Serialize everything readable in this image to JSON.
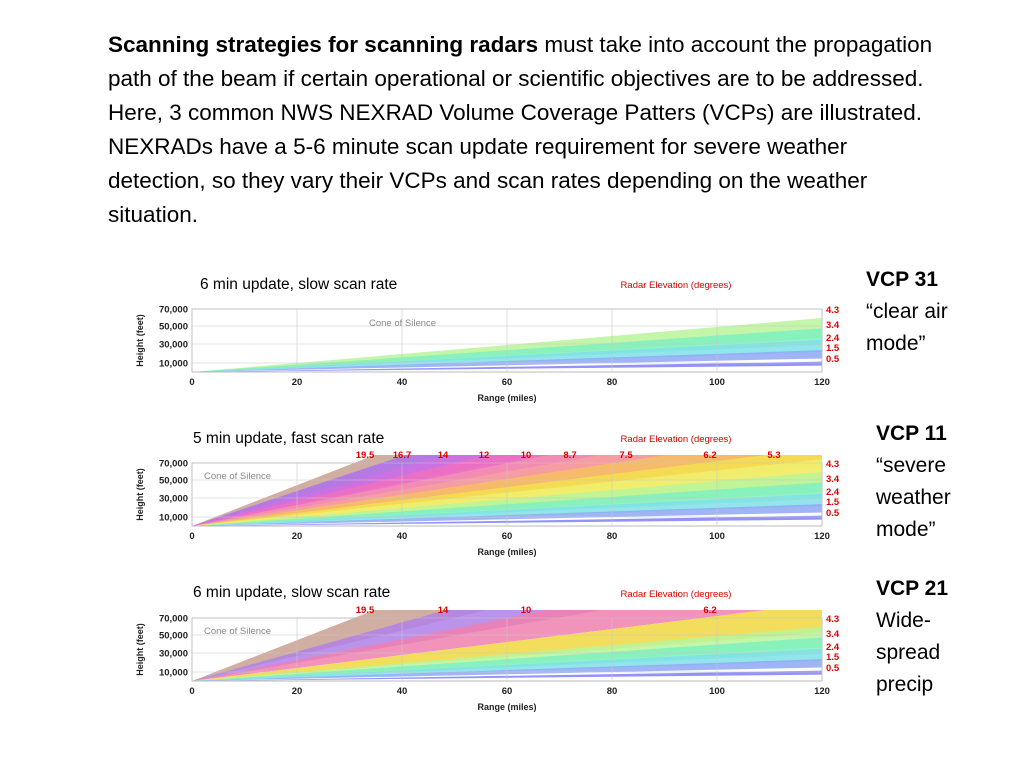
{
  "intro": {
    "bold": "Scanning strategies for scanning radars",
    "rest": " must take into account the propagation path of the beam if certain operational or scientific objectives are to be addressed.  Here, 3 common NWS NEXRAD Volume Coverage Patters (VCPs) are illustrated. NEXRADs have a 5-6 minute scan update requirement for severe weather detection, so they vary their VCPs and scan rates depending on the weather situation."
  },
  "colors": {
    "elevation_label": "#e00000",
    "grid": "#c8c8c8"
  },
  "panels": [
    {
      "caption": "6 min update, slow scan rate",
      "vcp_name": "VCP 31",
      "vcp_desc": "“clear air\nmode”",
      "chart_data": {
        "type": "line",
        "title": "Radar Elevation  (degrees)",
        "xlabel": "Range (miles)",
        "ylabel": "Height (feet)",
        "x_ticks": [
          0,
          20,
          40,
          60,
          80,
          100,
          120
        ],
        "y_ticks": [
          "70,000",
          "50,000",
          "30,000",
          "10,000"
        ],
        "annotation": "Cone of Silence",
        "right_labels": [
          "4.3",
          "3.4",
          "2.4",
          "1.5",
          "0.5"
        ],
        "top_labels": [],
        "beams": [
          {
            "elev": 0.5,
            "color": "#7f7ff8"
          },
          {
            "elev": 1.5,
            "color": "#8fa8f5"
          },
          {
            "elev": 2.4,
            "color": "#7fe0e8"
          },
          {
            "elev": 3.4,
            "color": "#7ff0c0"
          },
          {
            "elev": 4.3,
            "color": "#b8f59a"
          }
        ]
      }
    },
    {
      "caption": "5 min update, fast scan rate",
      "vcp_name": "VCP 11",
      "vcp_desc": "“severe\nweather\nmode”",
      "chart_data": {
        "type": "line",
        "title": "Radar Elevation  (degrees)",
        "xlabel": "Range (miles)",
        "ylabel": "Height (feet)",
        "x_ticks": [
          0,
          20,
          40,
          60,
          80,
          100,
          120
        ],
        "y_ticks": [
          "70,000",
          "50,000",
          "30,000",
          "10,000"
        ],
        "annotation": "Cone of Silence",
        "right_labels": [
          "4.3",
          "3.4",
          "2.4",
          "1.5",
          "0.5"
        ],
        "top_labels": [
          "19.5",
          "16.7",
          "14",
          "12",
          "10",
          "8.7",
          "7.5",
          "6.2",
          "5.3"
        ],
        "beams": [
          {
            "elev": 0.5,
            "color": "#7f7ff8"
          },
          {
            "elev": 1.5,
            "color": "#8fa8f5"
          },
          {
            "elev": 2.4,
            "color": "#7fe0e8"
          },
          {
            "elev": 3.4,
            "color": "#7ff0c0"
          },
          {
            "elev": 4.3,
            "color": "#b8f59a"
          },
          {
            "elev": 5.3,
            "color": "#f0f070"
          },
          {
            "elev": 6.2,
            "color": "#f5e050"
          },
          {
            "elev": 7.5,
            "color": "#f5c060"
          },
          {
            "elev": 8.7,
            "color": "#f5a0a0"
          },
          {
            "elev": 10,
            "color": "#f590b0"
          },
          {
            "elev": 12,
            "color": "#f070c0"
          },
          {
            "elev": 14,
            "color": "#d070e0"
          },
          {
            "elev": 16.7,
            "color": "#b070f0"
          },
          {
            "elev": 19.5,
            "color": "#c8a090"
          }
        ]
      }
    },
    {
      "caption": "6 min update, slow scan rate",
      "vcp_name": "VCP 21",
      "vcp_desc": "Wide-\nspread\nprecip",
      "chart_data": {
        "type": "line",
        "title": "Radar Elevation  (degrees)",
        "xlabel": "Range (miles)",
        "ylabel": "Height (feet)",
        "x_ticks": [
          0,
          20,
          40,
          60,
          80,
          100,
          120
        ],
        "y_ticks": [
          "70,000",
          "50,000",
          "30,000",
          "10,000"
        ],
        "annotation": "Cone of Silence",
        "right_labels": [
          "4.3",
          "3.4",
          "2.4",
          "1.5",
          "0.5"
        ],
        "top_labels": [
          "19.5",
          "14",
          "10",
          "6.2"
        ],
        "beams": [
          {
            "elev": 0.5,
            "color": "#7f7ff8"
          },
          {
            "elev": 1.5,
            "color": "#8fa8f5"
          },
          {
            "elev": 2.4,
            "color": "#7fe0e8"
          },
          {
            "elev": 3.4,
            "color": "#7ff0c0"
          },
          {
            "elev": 4.3,
            "color": "#b8f59a"
          },
          {
            "elev": 6.2,
            "color": "#f0d840"
          },
          {
            "elev": 10,
            "color": "#f080b0"
          },
          {
            "elev": 14,
            "color": "#b080e8"
          },
          {
            "elev": 19.5,
            "color": "#c8a090"
          }
        ]
      }
    }
  ]
}
